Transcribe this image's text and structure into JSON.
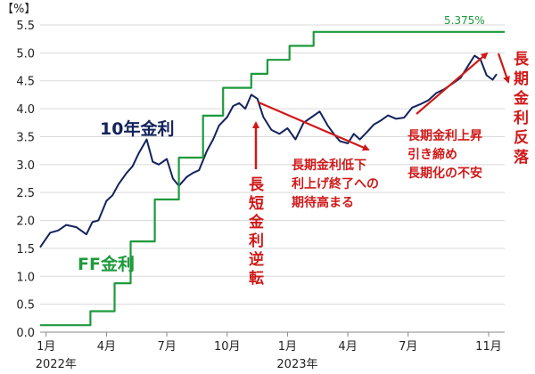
{
  "chart_data": {
    "type": "line",
    "unit_label": "【%】",
    "ylim": [
      0,
      5.5
    ],
    "yticks": [
      "0.0",
      "0.5",
      "1.0",
      "1.5",
      "2.0",
      "2.5",
      "3.0",
      "3.5",
      "4.0",
      "4.5",
      "5.0",
      "5.5"
    ],
    "xticks": [
      {
        "label": "1月",
        "x": 0
      },
      {
        "label": "4月",
        "x": 3
      },
      {
        "label": "7月",
        "x": 6
      },
      {
        "label": "10月",
        "x": 9
      },
      {
        "label": "1月",
        "x": 12
      },
      {
        "label": "4月",
        "x": 15
      },
      {
        "label": "7月",
        "x": 18
      },
      {
        "label": "11月",
        "x": 22
      }
    ],
    "year_labels": [
      {
        "label": "2022年",
        "x": 0
      },
      {
        "label": "2023年",
        "x": 12
      }
    ],
    "xlim": [
      -0.3,
      22.8
    ],
    "grid": true,
    "colors": {
      "treasury": "#13235b",
      "ff": "#1e9a3d",
      "annotation": "#d01919"
    },
    "series": [
      {
        "name": "10年金利",
        "style": "line",
        "x": [
          -0.3,
          0.2,
          0.6,
          1.0,
          1.5,
          2.0,
          2.3,
          2.6,
          3.0,
          3.3,
          3.6,
          4.0,
          4.3,
          4.6,
          5.0,
          5.3,
          5.6,
          6.0,
          6.3,
          6.6,
          7.0,
          7.3,
          7.6,
          8.0,
          8.3,
          8.6,
          9.0,
          9.3,
          9.6,
          9.9,
          10.2,
          10.5,
          10.8,
          11.2,
          11.6,
          12.0,
          12.4,
          12.8,
          13.2,
          13.6,
          14.0,
          14.3,
          14.6,
          15.0,
          15.3,
          15.6,
          16.0,
          16.3,
          16.6,
          17.0,
          17.4,
          17.8,
          18.2,
          18.6,
          19.0,
          19.4,
          19.8,
          20.2,
          20.6,
          21.0,
          21.3,
          21.6,
          21.9,
          22.2,
          22.4
        ],
        "values": [
          1.52,
          1.78,
          1.82,
          1.92,
          1.88,
          1.75,
          1.97,
          2.0,
          2.35,
          2.45,
          2.65,
          2.85,
          2.97,
          3.2,
          3.45,
          3.05,
          3.0,
          3.1,
          2.75,
          2.62,
          2.78,
          2.85,
          2.9,
          3.25,
          3.45,
          3.7,
          3.85,
          4.05,
          4.1,
          4.0,
          4.25,
          4.18,
          3.85,
          3.62,
          3.55,
          3.65,
          3.45,
          3.75,
          3.85,
          3.95,
          3.7,
          3.55,
          3.42,
          3.38,
          3.55,
          3.45,
          3.6,
          3.72,
          3.78,
          3.88,
          3.82,
          3.84,
          4.02,
          4.08,
          4.15,
          4.28,
          4.35,
          4.45,
          4.55,
          4.78,
          4.95,
          4.88,
          4.6,
          4.52,
          4.62
        ]
      },
      {
        "name": "FF金利",
        "style": "step",
        "x": [
          -0.3,
          2.2,
          2.2,
          3.4,
          3.4,
          4.2,
          4.2,
          5.4,
          5.4,
          6.6,
          6.6,
          7.8,
          7.8,
          8.8,
          8.8,
          10.2,
          10.2,
          11.0,
          11.0,
          12.1,
          12.1,
          13.3,
          13.3,
          14.5,
          14.5,
          16.8,
          16.8,
          22.8
        ],
        "values": [
          0.125,
          0.125,
          0.375,
          0.375,
          0.875,
          0.875,
          1.625,
          1.625,
          2.375,
          2.375,
          3.125,
          3.125,
          3.875,
          3.875,
          4.375,
          4.375,
          4.625,
          4.625,
          4.875,
          4.875,
          5.125,
          5.125,
          5.375,
          5.375,
          5.375,
          5.375,
          5.375,
          5.375
        ]
      }
    ],
    "labels": {
      "treasury": "10年金利",
      "ff": "FF金利",
      "ff_level": "5.375%",
      "inversion": [
        "長",
        "短",
        "金",
        "利",
        "逆",
        "転"
      ],
      "drop_lines": [
        "長期金利低下",
        "利上げ終了への",
        "期待高まる"
      ],
      "rise_lines": [
        "長期金利上昇",
        "引き締め",
        "長期化の不安"
      ],
      "reversal": [
        "長",
        "期",
        "金",
        "利",
        "反",
        "落"
      ]
    }
  }
}
